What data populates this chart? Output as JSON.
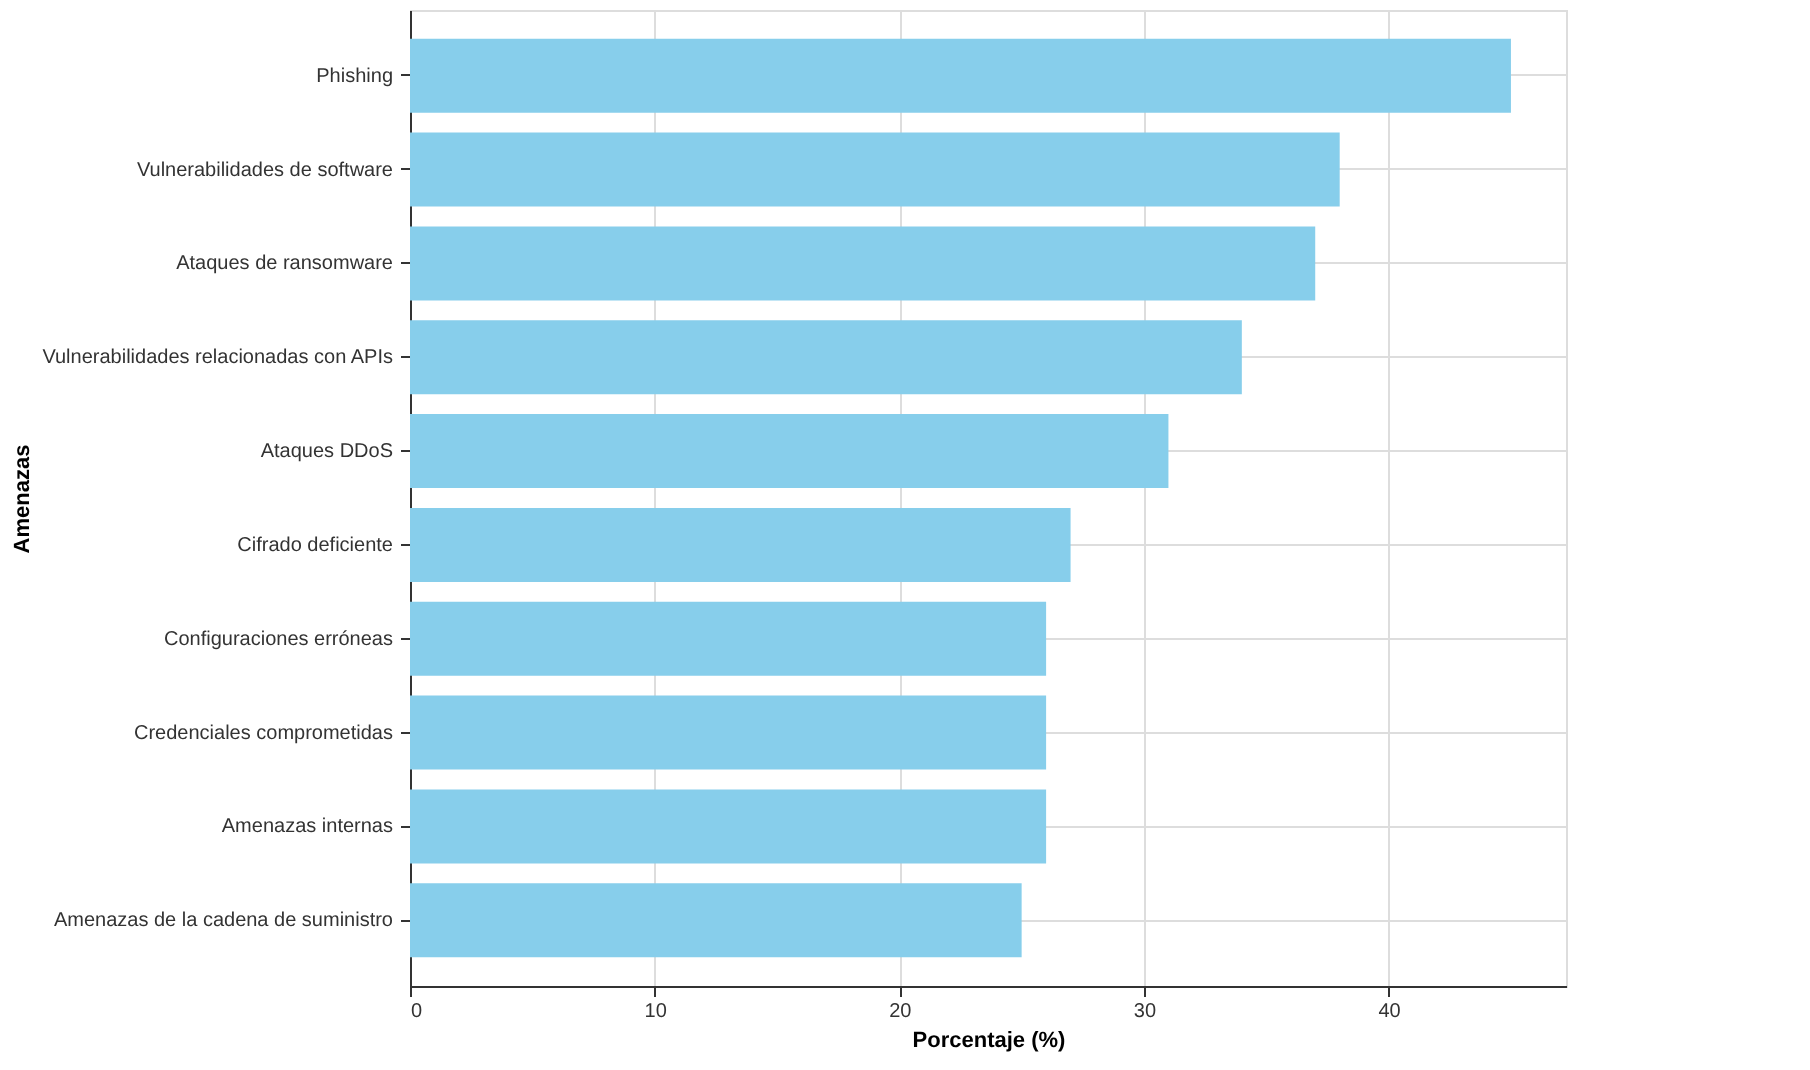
{
  "chart_data": {
    "type": "bar",
    "orientation": "horizontal",
    "xlabel": "Porcentaje (%)",
    "ylabel": "Amenazas",
    "categories": [
      "Phishing",
      "Vulnerabilidades de software",
      "Ataques de ransomware",
      "Vulnerabilidades relacionadas con APIs",
      "Ataques DDoS",
      "Cifrado deficiente",
      "Configuraciones erróneas",
      "Credenciales comprometidas",
      "Amenazas internas",
      "Amenazas de la cadena de suministro"
    ],
    "values": [
      45,
      38,
      37,
      34,
      31,
      27,
      26,
      26,
      26,
      25
    ],
    "color": "#87ceeb",
    "xlim": [
      0,
      47.25
    ],
    "xticks": [
      0,
      10,
      20,
      30,
      40
    ],
    "grid": true
  }
}
